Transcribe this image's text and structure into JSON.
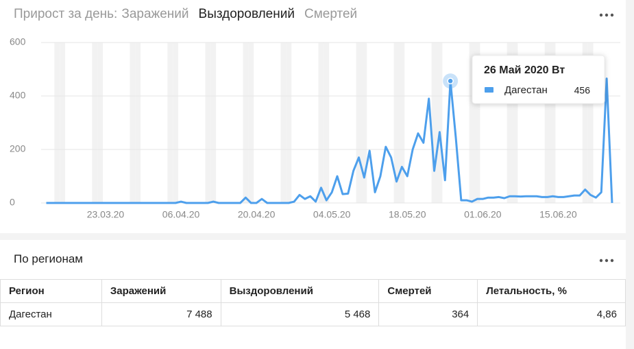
{
  "header": {
    "label": "Прирост за день:",
    "tabs": [
      "Заражений",
      "Выздоровлений",
      "Смертей"
    ]
  },
  "chart_data": {
    "type": "line",
    "x": [
      "12.03.20",
      "13.03.20",
      "14.03.20",
      "15.03.20",
      "16.03.20",
      "17.03.20",
      "18.03.20",
      "19.03.20",
      "20.03.20",
      "21.03.20",
      "22.03.20",
      "23.03.20",
      "24.03.20",
      "25.03.20",
      "26.03.20",
      "27.03.20",
      "28.03.20",
      "29.03.20",
      "30.03.20",
      "31.03.20",
      "01.04.20",
      "02.04.20",
      "03.04.20",
      "04.04.20",
      "05.04.20",
      "06.04.20",
      "07.04.20",
      "08.04.20",
      "09.04.20",
      "10.04.20",
      "11.04.20",
      "12.04.20",
      "13.04.20",
      "14.04.20",
      "15.04.20",
      "16.04.20",
      "17.04.20",
      "18.04.20",
      "19.04.20",
      "20.04.20",
      "21.04.20",
      "22.04.20",
      "23.04.20",
      "24.04.20",
      "25.04.20",
      "26.04.20",
      "27.04.20",
      "28.04.20",
      "29.04.20",
      "30.04.20",
      "01.05.20",
      "02.05.20",
      "03.05.20",
      "04.05.20",
      "05.05.20",
      "06.05.20",
      "07.05.20",
      "08.05.20",
      "09.05.20",
      "10.05.20",
      "11.05.20",
      "12.05.20",
      "13.05.20",
      "14.05.20",
      "15.05.20",
      "16.05.20",
      "17.05.20",
      "18.05.20",
      "19.05.20",
      "20.05.20",
      "21.05.20",
      "22.05.20",
      "23.05.20",
      "24.05.20",
      "25.05.20",
      "26.05.20",
      "27.05.20",
      "28.05.20",
      "29.05.20",
      "30.05.20",
      "31.05.20",
      "01.06.20",
      "02.06.20",
      "03.06.20",
      "04.06.20",
      "05.06.20",
      "06.06.20",
      "07.06.20",
      "08.06.20",
      "09.06.20",
      "10.06.20",
      "11.06.20",
      "12.06.20",
      "13.06.20",
      "14.06.20",
      "15.06.20",
      "16.06.20",
      "17.06.20",
      "18.06.20",
      "19.06.20",
      "20.06.20",
      "21.06.20",
      "22.06.20",
      "23.06.20",
      "24.06.20",
      "25.06.20"
    ],
    "series": [
      {
        "name": "Дагестан",
        "color": "#4d9fec",
        "values": [
          0,
          0,
          0,
          0,
          0,
          0,
          0,
          0,
          0,
          0,
          0,
          0,
          0,
          0,
          0,
          0,
          0,
          0,
          0,
          0,
          0,
          0,
          0,
          0,
          0,
          5,
          0,
          0,
          0,
          0,
          0,
          5,
          0,
          0,
          0,
          0,
          0,
          20,
          0,
          0,
          15,
          0,
          0,
          0,
          0,
          0,
          5,
          30,
          15,
          25,
          5,
          57,
          10,
          40,
          100,
          33,
          35,
          120,
          170,
          95,
          195,
          40,
          100,
          210,
          170,
          80,
          135,
          100,
          200,
          260,
          225,
          390,
          120,
          265,
          85,
          456,
          245,
          10,
          10,
          5,
          15,
          15,
          20,
          20,
          22,
          18,
          25,
          25,
          24,
          25,
          25,
          25,
          22,
          22,
          25,
          22,
          22,
          25,
          28,
          28,
          50,
          30,
          20,
          40,
          465,
          0
        ]
      }
    ],
    "ylim": [
      0,
      600
    ],
    "yticks": [
      0,
      200,
      400,
      600
    ],
    "xticks": [
      "23.03.20",
      "06.04.20",
      "20.04.20",
      "04.05.20",
      "18.05.20",
      "01.06.20",
      "15.06.20"
    ],
    "grid": true,
    "tooltip": {
      "title": "26 Май 2020 Вт",
      "series": "Дагестан",
      "value": 456
    }
  },
  "table": {
    "title": "По регионам",
    "columns": [
      "Регион",
      "Заражений",
      "Выздоровлений",
      "Смертей",
      "Летальность, %"
    ],
    "rows": [
      [
        "Дагестан",
        "7 488",
        "5 468",
        "364",
        "4,86"
      ]
    ]
  }
}
